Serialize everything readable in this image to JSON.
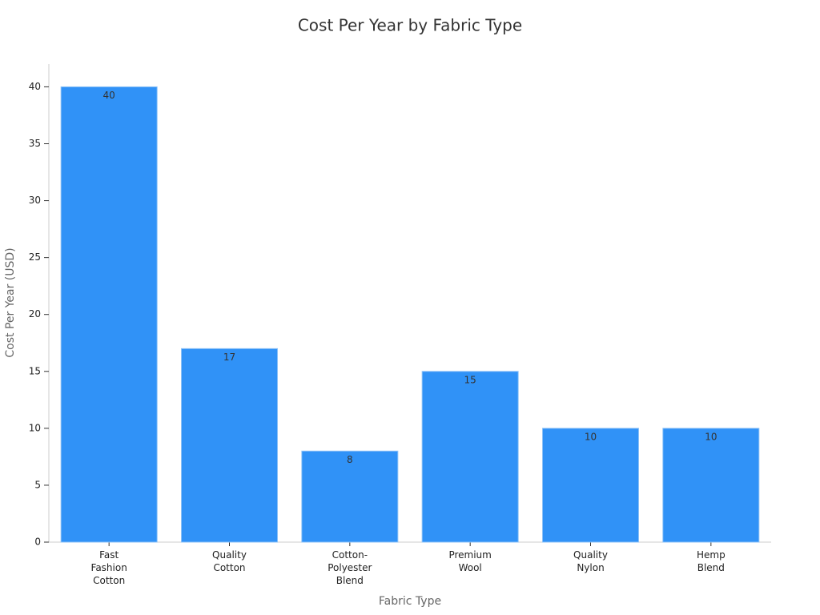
{
  "chart_data": {
    "type": "bar",
    "title": "Cost Per Year by Fabric Type",
    "x_label": "Fabric Type",
    "y_label": "Cost Per Year (USD)",
    "categories": [
      "Fast Fashion Cotton",
      "Quality Cotton",
      "Cotton-Polyester Blend",
      "Premium Wool",
      "Quality Nylon",
      "Hemp Blend"
    ],
    "values": [
      40,
      17,
      8,
      15,
      10,
      10
    ],
    "color": "#3092f7",
    "ylim": [
      0,
      42
    ],
    "yticks": [
      0,
      5,
      10,
      15,
      20,
      25,
      30,
      35,
      40
    ],
    "grid": false
  }
}
